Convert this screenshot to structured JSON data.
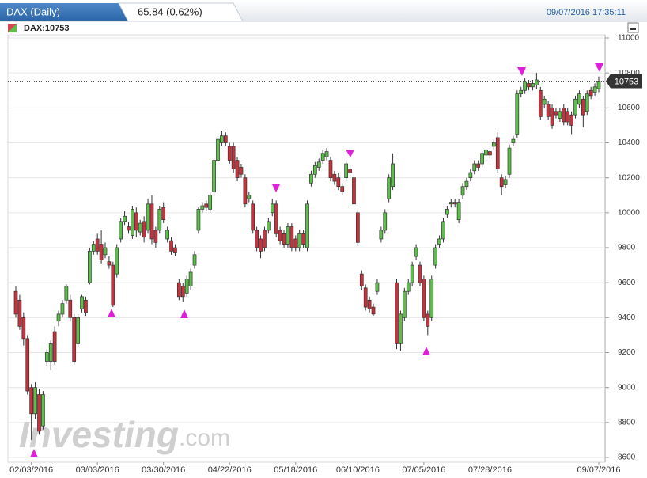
{
  "chart_data": {
    "type": "candlestick",
    "title": "DAX (Daily)",
    "change": "65.84 (0.62%)",
    "timestamp": "09/07/2016 17:35:11",
    "symbol_label": "DAX:10753",
    "watermark_brand": "Investing",
    "watermark_suffix": ".com",
    "up_color": "#5cbf4a",
    "down_color": "#c9323d",
    "grid": true,
    "ylim": [
      8600,
      11000
    ],
    "yticks": [
      8600,
      8800,
      9000,
      9200,
      9400,
      9600,
      9800,
      10000,
      10200,
      10400,
      10600,
      10800,
      11000
    ],
    "last_price": 10753,
    "categories": [
      null,
      null,
      null,
      null,
      "02/03/2016",
      null,
      null,
      null,
      null,
      null,
      null,
      null,
      null,
      null,
      null,
      null,
      null,
      null,
      null,
      null,
      null,
      "03/03/2016",
      null,
      null,
      null,
      null,
      null,
      null,
      null,
      null,
      null,
      null,
      null,
      null,
      null,
      null,
      null,
      null,
      "03/30/2016",
      null,
      null,
      null,
      null,
      null,
      null,
      null,
      null,
      null,
      null,
      null,
      null,
      null,
      null,
      null,
      null,
      "04/22/2016",
      null,
      null,
      null,
      null,
      null,
      null,
      null,
      null,
      null,
      null,
      null,
      null,
      null,
      null,
      null,
      null,
      "05/18/2016",
      null,
      null,
      null,
      null,
      null,
      null,
      null,
      null,
      null,
      null,
      null,
      null,
      null,
      null,
      null,
      "06/10/2016",
      null,
      null,
      null,
      null,
      null,
      null,
      null,
      null,
      null,
      null,
      null,
      null,
      null,
      null,
      null,
      null,
      "07/05/2016",
      null,
      null,
      null,
      null,
      null,
      null,
      null,
      null,
      null,
      null,
      null,
      null,
      null,
      null,
      null,
      null,
      "07/28/2016",
      null,
      null,
      null,
      null,
      null,
      null,
      null,
      null,
      null,
      null,
      null,
      null,
      null,
      null,
      null,
      null,
      null,
      null,
      null,
      null,
      null,
      null,
      null,
      null,
      null,
      null,
      null,
      "09/07/2016"
    ],
    "ohlc": [
      [
        9550,
        9580,
        9400,
        9420
      ],
      [
        9500,
        9530,
        9330,
        9350
      ],
      [
        9400,
        9430,
        9240,
        9280
      ],
      [
        9280,
        9300,
        8960,
        8980
      ],
      [
        9000,
        9020,
        8700,
        8850
      ],
      [
        8850,
        9030,
        8820,
        9000
      ],
      [
        8960,
        8990,
        8730,
        8750
      ],
      [
        8780,
        8980,
        8760,
        8960
      ],
      [
        9150,
        9220,
        9120,
        9200
      ],
      [
        9150,
        9270,
        9100,
        9250
      ],
      [
        9320,
        9350,
        9130,
        9150
      ],
      [
        9380,
        9440,
        9350,
        9420
      ],
      [
        9420,
        9500,
        9400,
        9480
      ],
      [
        9500,
        9590,
        9480,
        9580
      ],
      [
        9500,
        9530,
        9380,
        9400
      ],
      [
        9400,
        9420,
        9130,
        9150
      ],
      [
        9250,
        9420,
        9230,
        9400
      ],
      [
        9450,
        9530,
        9430,
        9520
      ],
      [
        9500,
        9520,
        9410,
        9430
      ],
      [
        9600,
        9800,
        9590,
        9780
      ],
      [
        9780,
        9840,
        9760,
        9820
      ],
      [
        9850,
        9880,
        9760,
        9780
      ],
      [
        9820,
        9900,
        9710,
        9730
      ],
      [
        9760,
        9830,
        9740,
        9800
      ],
      [
        9720,
        9750,
        9680,
        9700
      ],
      [
        9700,
        9720,
        9460,
        9470
      ],
      [
        9650,
        9820,
        9630,
        9800
      ],
      [
        9850,
        9970,
        9830,
        9950
      ],
      [
        9950,
        10010,
        9930,
        9980
      ],
      [
        9920,
        9950,
        9880,
        9900
      ],
      [
        9870,
        10040,
        9850,
        10020
      ],
      [
        10000,
        10030,
        9860,
        9900
      ],
      [
        9890,
        9960,
        9870,
        9940
      ],
      [
        9950,
        9980,
        9830,
        9860
      ],
      [
        9900,
        10080,
        9880,
        10050
      ],
      [
        10050,
        10100,
        9820,
        9850
      ],
      [
        9900,
        9920,
        9800,
        9830
      ],
      [
        9900,
        10040,
        9880,
        10020
      ],
      [
        10030,
        10060,
        9940,
        9960
      ],
      [
        9850,
        9920,
        9830,
        9900
      ],
      [
        9840,
        9860,
        9760,
        9780
      ],
      [
        9800,
        9820,
        9750,
        9770
      ],
      [
        9600,
        9620,
        9500,
        9520
      ],
      [
        9580,
        9600,
        9490,
        9520
      ],
      [
        9540,
        9640,
        9520,
        9620
      ],
      [
        9580,
        9680,
        9560,
        9660
      ],
      [
        9700,
        9780,
        9680,
        9760
      ],
      [
        9900,
        10030,
        9880,
        10020
      ],
      [
        10020,
        10060,
        10000,
        10040
      ],
      [
        10050,
        10070,
        10010,
        10030
      ],
      [
        10020,
        10120,
        10000,
        10100
      ],
      [
        10120,
        10310,
        10100,
        10300
      ],
      [
        10300,
        10430,
        10280,
        10420
      ],
      [
        10400,
        10470,
        10380,
        10440
      ],
      [
        10440,
        10460,
        10380,
        10400
      ],
      [
        10380,
        10400,
        10280,
        10300
      ],
      [
        10380,
        10400,
        10230,
        10250
      ],
      [
        10300,
        10320,
        10180,
        10200
      ],
      [
        10260,
        10280,
        10200,
        10220
      ],
      [
        10200,
        10220,
        10030,
        10050
      ],
      [
        10080,
        10120,
        10060,
        10100
      ],
      [
        10050,
        10070,
        9880,
        9900
      ],
      [
        9900,
        9920,
        9780,
        9800
      ],
      [
        9850,
        9870,
        9740,
        9780
      ],
      [
        9900,
        9920,
        9780,
        9800
      ],
      [
        9900,
        9970,
        9880,
        9950
      ],
      [
        10000,
        10080,
        9980,
        10050
      ],
      [
        10050,
        10070,
        9860,
        9880
      ],
      [
        9900,
        9920,
        9820,
        9840
      ],
      [
        9880,
        9900,
        9800,
        9820
      ],
      [
        9820,
        9940,
        9800,
        9920
      ],
      [
        9920,
        9940,
        9780,
        9800
      ],
      [
        9850,
        9870,
        9780,
        9800
      ],
      [
        9800,
        9900,
        9780,
        9880
      ],
      [
        9880,
        9900,
        9800,
        9820
      ],
      [
        9800,
        10070,
        9780,
        10050
      ],
      [
        10170,
        10240,
        10150,
        10220
      ],
      [
        10220,
        10290,
        10200,
        10270
      ],
      [
        10260,
        10310,
        10240,
        10290
      ],
      [
        10300,
        10360,
        10280,
        10340
      ],
      [
        10320,
        10370,
        10300,
        10350
      ],
      [
        10300,
        10320,
        10180,
        10200
      ],
      [
        10220,
        10240,
        10160,
        10180
      ],
      [
        10200,
        10230,
        10130,
        10150
      ],
      [
        10150,
        10170,
        10100,
        10120
      ],
      [
        10200,
        10300,
        10180,
        10280
      ],
      [
        10250,
        10270,
        10210,
        10230
      ],
      [
        10200,
        10220,
        10030,
        10050
      ],
      [
        10000,
        10020,
        9810,
        9830
      ],
      [
        9650,
        9670,
        9560,
        9580
      ],
      [
        9570,
        9590,
        9440,
        9460
      ],
      [
        9500,
        9520,
        9430,
        9450
      ],
      [
        9460,
        9480,
        9410,
        9420
      ],
      [
        9550,
        9620,
        9530,
        9600
      ],
      [
        9850,
        9920,
        9830,
        9900
      ],
      [
        9900,
        10020,
        9880,
        10000
      ],
      [
        10080,
        10220,
        10060,
        10200
      ],
      [
        10150,
        10340,
        10130,
        10280
      ],
      [
        9600,
        9620,
        9220,
        9250
      ],
      [
        9250,
        9440,
        9210,
        9420
      ],
      [
        9400,
        9570,
        9380,
        9550
      ],
      [
        9550,
        9620,
        9530,
        9600
      ],
      [
        9600,
        9720,
        9580,
        9700
      ],
      [
        9750,
        9820,
        9730,
        9800
      ],
      [
        9700,
        9720,
        9580,
        9600
      ],
      [
        9620,
        9640,
        9380,
        9400
      ],
      [
        9420,
        9440,
        9300,
        9350
      ],
      [
        9400,
        9640,
        9380,
        9620
      ],
      [
        9700,
        9820,
        9680,
        9800
      ],
      [
        9820,
        9870,
        9800,
        9850
      ],
      [
        9850,
        9970,
        9830,
        9950
      ],
      [
        9990,
        10040,
        9970,
        10020
      ],
      [
        10050,
        10080,
        10030,
        10060
      ],
      [
        10060,
        10080,
        10030,
        10050
      ],
      [
        9960,
        10080,
        9940,
        10060
      ],
      [
        10100,
        10170,
        10080,
        10150
      ],
      [
        10150,
        10200,
        10130,
        10180
      ],
      [
        10200,
        10250,
        10180,
        10230
      ],
      [
        10240,
        10300,
        10220,
        10280
      ],
      [
        10280,
        10300,
        10240,
        10260
      ],
      [
        10280,
        10360,
        10260,
        10340
      ],
      [
        10330,
        10380,
        10310,
        10360
      ],
      [
        10350,
        10370,
        10310,
        10330
      ],
      [
        10380,
        10420,
        10360,
        10400
      ],
      [
        10430,
        10460,
        10230,
        10250
      ],
      [
        10200,
        10220,
        10100,
        10150
      ],
      [
        10160,
        10210,
        10140,
        10190
      ],
      [
        10220,
        10390,
        10200,
        10370
      ],
      [
        10400,
        10440,
        10380,
        10420
      ],
      [
        10450,
        10700,
        10430,
        10680
      ],
      [
        10680,
        10720,
        10660,
        10700
      ],
      [
        10700,
        10770,
        10680,
        10750
      ],
      [
        10740,
        10760,
        10700,
        10720
      ],
      [
        10720,
        10760,
        10700,
        10740
      ],
      [
        10730,
        10800,
        10710,
        10760
      ],
      [
        10700,
        10720,
        10530,
        10550
      ],
      [
        10620,
        10670,
        10600,
        10650
      ],
      [
        10620,
        10640,
        10530,
        10550
      ],
      [
        10600,
        10620,
        10480,
        10500
      ],
      [
        10580,
        10600,
        10540,
        10560
      ],
      [
        10540,
        10600,
        10520,
        10580
      ],
      [
        10600,
        10620,
        10500,
        10520
      ],
      [
        10580,
        10600,
        10500,
        10520
      ],
      [
        10560,
        10580,
        10450,
        10500
      ],
      [
        10560,
        10670,
        10540,
        10650
      ],
      [
        10620,
        10700,
        10600,
        10680
      ],
      [
        10650,
        10670,
        10490,
        10560
      ],
      [
        10580,
        10700,
        10560,
        10680
      ],
      [
        10700,
        10720,
        10650,
        10670
      ],
      [
        10690,
        10740,
        10670,
        10720
      ],
      [
        10710,
        10780,
        10690,
        10753
      ]
    ]
  }
}
